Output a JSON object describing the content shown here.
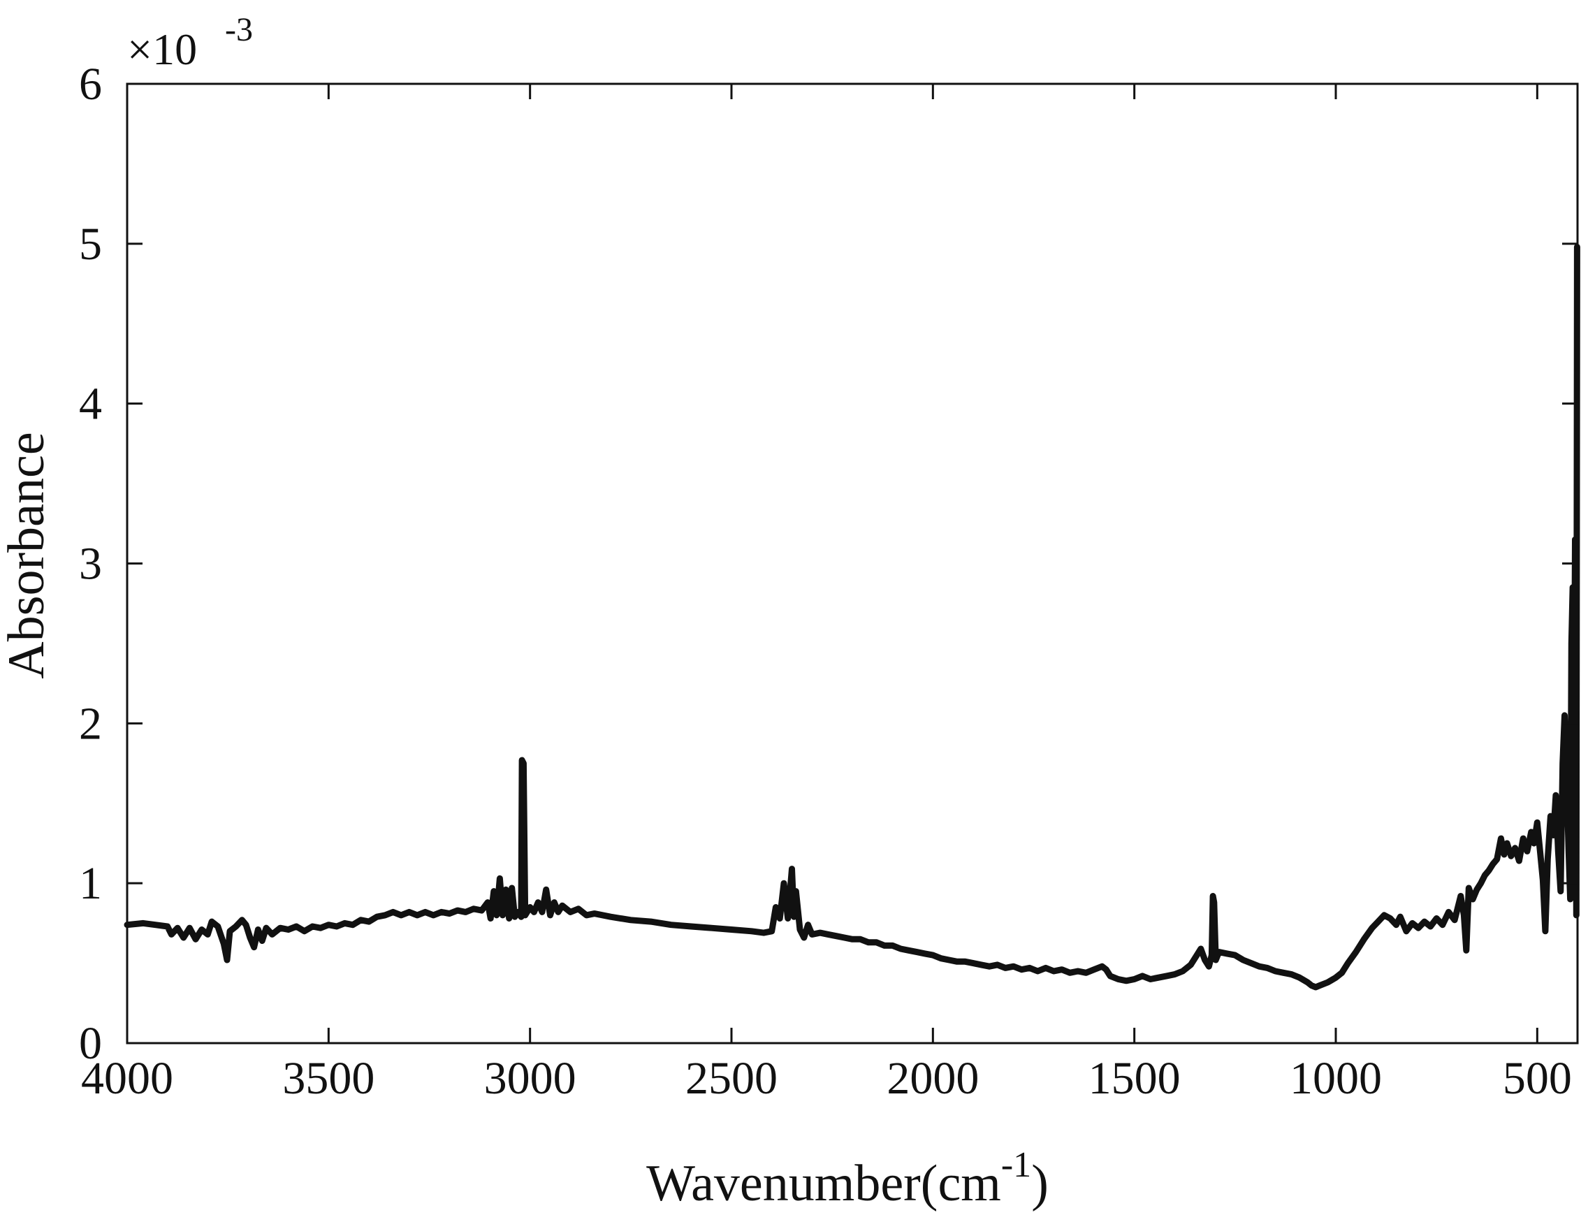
{
  "chart_data": {
    "type": "line",
    "xlabel": "Wavenumber(cm",
    "xlabel_exponent": "-1",
    "xlabel_suffix": ")",
    "ylabel": "Absorbance",
    "y_multiplier_base": "×10",
    "y_multiplier_exponent": "-3",
    "xlim": [
      4000,
      400
    ],
    "ylim": [
      0,
      6
    ],
    "x_reversed": true,
    "grid": false,
    "legend": "none",
    "x_ticks": [
      4000,
      3500,
      3000,
      2500,
      2000,
      1500,
      1000,
      500
    ],
    "x_tick_labels": [
      "4000",
      "3500",
      "3000",
      "2500",
      "2000",
      "1500",
      "1000",
      "500"
    ],
    "y_ticks": [
      0,
      1,
      2,
      3,
      4,
      5,
      6
    ],
    "y_tick_labels": [
      "0",
      "1",
      "2",
      "3",
      "4",
      "5",
      "6"
    ],
    "line_color": "#111111",
    "series": [
      {
        "values_unit": "x10^-3",
        "points": [
          [
            4000,
            0.74
          ],
          [
            3960,
            0.75
          ],
          [
            3930,
            0.74
          ],
          [
            3900,
            0.73
          ],
          [
            3890,
            0.68
          ],
          [
            3875,
            0.72
          ],
          [
            3860,
            0.66
          ],
          [
            3845,
            0.72
          ],
          [
            3830,
            0.65
          ],
          [
            3815,
            0.71
          ],
          [
            3800,
            0.68
          ],
          [
            3790,
            0.76
          ],
          [
            3775,
            0.73
          ],
          [
            3760,
            0.62
          ],
          [
            3752,
            0.52
          ],
          [
            3745,
            0.7
          ],
          [
            3730,
            0.73
          ],
          [
            3715,
            0.77
          ],
          [
            3705,
            0.74
          ],
          [
            3695,
            0.66
          ],
          [
            3685,
            0.6
          ],
          [
            3675,
            0.71
          ],
          [
            3665,
            0.64
          ],
          [
            3655,
            0.72
          ],
          [
            3640,
            0.68
          ],
          [
            3620,
            0.72
          ],
          [
            3600,
            0.71
          ],
          [
            3580,
            0.73
          ],
          [
            3560,
            0.7
          ],
          [
            3540,
            0.73
          ],
          [
            3520,
            0.72
          ],
          [
            3500,
            0.74
          ],
          [
            3480,
            0.73
          ],
          [
            3460,
            0.75
          ],
          [
            3440,
            0.74
          ],
          [
            3420,
            0.77
          ],
          [
            3400,
            0.76
          ],
          [
            3380,
            0.79
          ],
          [
            3360,
            0.8
          ],
          [
            3340,
            0.82
          ],
          [
            3320,
            0.8
          ],
          [
            3300,
            0.82
          ],
          [
            3280,
            0.8
          ],
          [
            3260,
            0.82
          ],
          [
            3240,
            0.8
          ],
          [
            3220,
            0.82
          ],
          [
            3200,
            0.81
          ],
          [
            3180,
            0.83
          ],
          [
            3160,
            0.82
          ],
          [
            3140,
            0.84
          ],
          [
            3120,
            0.83
          ],
          [
            3105,
            0.88
          ],
          [
            3098,
            0.78
          ],
          [
            3090,
            0.95
          ],
          [
            3083,
            0.8
          ],
          [
            3075,
            1.03
          ],
          [
            3068,
            0.8
          ],
          [
            3060,
            0.96
          ],
          [
            3052,
            0.78
          ],
          [
            3045,
            0.97
          ],
          [
            3038,
            0.79
          ],
          [
            3030,
            0.82
          ],
          [
            3022,
            0.79
          ],
          [
            3020,
            1.77
          ],
          [
            3016,
            1.75
          ],
          [
            3012,
            0.8
          ],
          [
            3000,
            0.85
          ],
          [
            2990,
            0.82
          ],
          [
            2980,
            0.88
          ],
          [
            2970,
            0.82
          ],
          [
            2960,
            0.96
          ],
          [
            2950,
            0.8
          ],
          [
            2940,
            0.88
          ],
          [
            2930,
            0.82
          ],
          [
            2920,
            0.86
          ],
          [
            2900,
            0.82
          ],
          [
            2880,
            0.84
          ],
          [
            2860,
            0.8
          ],
          [
            2840,
            0.81
          ],
          [
            2800,
            0.79
          ],
          [
            2750,
            0.77
          ],
          [
            2700,
            0.76
          ],
          [
            2650,
            0.74
          ],
          [
            2600,
            0.73
          ],
          [
            2550,
            0.72
          ],
          [
            2500,
            0.71
          ],
          [
            2450,
            0.7
          ],
          [
            2420,
            0.69
          ],
          [
            2400,
            0.7
          ],
          [
            2390,
            0.85
          ],
          [
            2380,
            0.78
          ],
          [
            2370,
            1.0
          ],
          [
            2360,
            0.78
          ],
          [
            2350,
            1.09
          ],
          [
            2345,
            0.79
          ],
          [
            2340,
            0.95
          ],
          [
            2330,
            0.71
          ],
          [
            2320,
            0.66
          ],
          [
            2310,
            0.74
          ],
          [
            2300,
            0.68
          ],
          [
            2280,
            0.69
          ],
          [
            2260,
            0.68
          ],
          [
            2240,
            0.67
          ],
          [
            2220,
            0.66
          ],
          [
            2200,
            0.65
          ],
          [
            2180,
            0.65
          ],
          [
            2160,
            0.63
          ],
          [
            2140,
            0.63
          ],
          [
            2120,
            0.61
          ],
          [
            2100,
            0.61
          ],
          [
            2080,
            0.59
          ],
          [
            2060,
            0.58
          ],
          [
            2040,
            0.57
          ],
          [
            2020,
            0.56
          ],
          [
            2000,
            0.55
          ],
          [
            1980,
            0.53
          ],
          [
            1960,
            0.52
          ],
          [
            1940,
            0.51
          ],
          [
            1920,
            0.51
          ],
          [
            1900,
            0.5
          ],
          [
            1880,
            0.49
          ],
          [
            1860,
            0.48
          ],
          [
            1840,
            0.49
          ],
          [
            1820,
            0.47
          ],
          [
            1800,
            0.48
          ],
          [
            1780,
            0.46
          ],
          [
            1760,
            0.47
          ],
          [
            1740,
            0.45
          ],
          [
            1720,
            0.47
          ],
          [
            1700,
            0.45
          ],
          [
            1680,
            0.46
          ],
          [
            1660,
            0.44
          ],
          [
            1640,
            0.45
          ],
          [
            1620,
            0.44
          ],
          [
            1600,
            0.46
          ],
          [
            1580,
            0.48
          ],
          [
            1570,
            0.46
          ],
          [
            1560,
            0.42
          ],
          [
            1540,
            0.4
          ],
          [
            1520,
            0.39
          ],
          [
            1500,
            0.4
          ],
          [
            1480,
            0.42
          ],
          [
            1460,
            0.4
          ],
          [
            1440,
            0.41
          ],
          [
            1420,
            0.42
          ],
          [
            1400,
            0.43
          ],
          [
            1380,
            0.45
          ],
          [
            1360,
            0.49
          ],
          [
            1345,
            0.55
          ],
          [
            1335,
            0.59
          ],
          [
            1325,
            0.52
          ],
          [
            1315,
            0.48
          ],
          [
            1308,
            0.55
          ],
          [
            1305,
            0.92
          ],
          [
            1302,
            0.88
          ],
          [
            1298,
            0.52
          ],
          [
            1290,
            0.57
          ],
          [
            1270,
            0.56
          ],
          [
            1250,
            0.55
          ],
          [
            1230,
            0.52
          ],
          [
            1210,
            0.5
          ],
          [
            1190,
            0.48
          ],
          [
            1170,
            0.47
          ],
          [
            1150,
            0.45
          ],
          [
            1130,
            0.44
          ],
          [
            1110,
            0.43
          ],
          [
            1090,
            0.41
          ],
          [
            1070,
            0.38
          ],
          [
            1060,
            0.36
          ],
          [
            1050,
            0.35
          ],
          [
            1040,
            0.36
          ],
          [
            1020,
            0.38
          ],
          [
            1000,
            0.41
          ],
          [
            985,
            0.44
          ],
          [
            970,
            0.5
          ],
          [
            950,
            0.57
          ],
          [
            930,
            0.65
          ],
          [
            910,
            0.72
          ],
          [
            895,
            0.76
          ],
          [
            880,
            0.8
          ],
          [
            865,
            0.78
          ],
          [
            850,
            0.74
          ],
          [
            840,
            0.79
          ],
          [
            825,
            0.7
          ],
          [
            810,
            0.75
          ],
          [
            795,
            0.72
          ],
          [
            780,
            0.76
          ],
          [
            765,
            0.73
          ],
          [
            750,
            0.78
          ],
          [
            735,
            0.74
          ],
          [
            720,
            0.82
          ],
          [
            705,
            0.77
          ],
          [
            690,
            0.92
          ],
          [
            682,
            0.8
          ],
          [
            676,
            0.58
          ],
          [
            670,
            0.97
          ],
          [
            660,
            0.9
          ],
          [
            650,
            0.96
          ],
          [
            640,
            1.0
          ],
          [
            630,
            1.05
          ],
          [
            620,
            1.08
          ],
          [
            610,
            1.12
          ],
          [
            600,
            1.15
          ],
          [
            590,
            1.28
          ],
          [
            582,
            1.18
          ],
          [
            575,
            1.25
          ],
          [
            565,
            1.17
          ],
          [
            555,
            1.22
          ],
          [
            545,
            1.14
          ],
          [
            535,
            1.28
          ],
          [
            525,
            1.2
          ],
          [
            515,
            1.32
          ],
          [
            508,
            1.25
          ],
          [
            500,
            1.38
          ],
          [
            493,
            1.2
          ],
          [
            486,
            1.02
          ],
          [
            480,
            0.7
          ],
          [
            474,
            1.15
          ],
          [
            467,
            1.42
          ],
          [
            460,
            1.3
          ],
          [
            454,
            1.55
          ],
          [
            448,
            1.2
          ],
          [
            442,
            0.95
          ],
          [
            437,
            1.75
          ],
          [
            432,
            2.05
          ],
          [
            427,
            1.65
          ],
          [
            422,
            1.2
          ],
          [
            418,
            0.9
          ],
          [
            415,
            2.5
          ],
          [
            412,
            2.85
          ],
          [
            409,
            1.6
          ],
          [
            406,
            3.15
          ],
          [
            403,
            0.8
          ],
          [
            401,
            4.98
          ]
        ]
      }
    ]
  }
}
